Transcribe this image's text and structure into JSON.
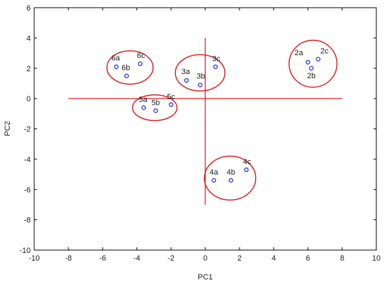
{
  "chart_data": {
    "type": "scatter",
    "xlabel": "PC1",
    "ylabel": "PC2",
    "xlim": [
      -10,
      10
    ],
    "ylim": [
      -10,
      6
    ],
    "x_ticks": [
      -10,
      -8,
      -6,
      -4,
      -2,
      0,
      2,
      4,
      6,
      8,
      10
    ],
    "y_ticks": [
      -10,
      -8,
      -6,
      -4,
      -2,
      0,
      2,
      4,
      6
    ],
    "grid": false,
    "legend": "none",
    "marker_color": "#1f2de8",
    "accent_color": "#e02020",
    "reference_lines": [
      {
        "orientation": "horizontal",
        "y": 0,
        "x_from": -8,
        "x_to": 8
      },
      {
        "orientation": "vertical",
        "x": 0,
        "y_from": -7,
        "y_to": 4
      }
    ],
    "points": [
      {
        "label": "2a",
        "x": 6.0,
        "y": 2.4
      },
      {
        "label": "2b",
        "x": 6.2,
        "y": 2.0
      },
      {
        "label": "2c",
        "x": 6.6,
        "y": 2.6
      },
      {
        "label": "3a",
        "x": -1.1,
        "y": 1.2
      },
      {
        "label": "3b",
        "x": -0.3,
        "y": 0.9
      },
      {
        "label": "3c",
        "x": 0.6,
        "y": 2.1
      },
      {
        "label": "4a",
        "x": 0.5,
        "y": -5.4
      },
      {
        "label": "4b",
        "x": 1.5,
        "y": -5.4
      },
      {
        "label": "4c",
        "x": 2.4,
        "y": -4.7
      },
      {
        "label": "5a",
        "x": -3.6,
        "y": -0.6
      },
      {
        "label": "5b",
        "x": -2.9,
        "y": -0.8
      },
      {
        "label": "5c",
        "x": -2.0,
        "y": -0.4
      },
      {
        "label": "6a",
        "x": -5.2,
        "y": 2.1
      },
      {
        "label": "6b",
        "x": -4.6,
        "y": 1.5
      },
      {
        "label": "6c",
        "x": -3.8,
        "y": 2.3
      }
    ],
    "groups": [
      {
        "members": [
          "2a",
          "2b",
          "2c"
        ],
        "cx": 6.3,
        "cy": 2.3,
        "rx": 1.4,
        "ry": 1.55
      },
      {
        "members": [
          "3a",
          "3b",
          "3c"
        ],
        "cx": -0.3,
        "cy": 1.7,
        "rx": 1.45,
        "ry": 1.2
      },
      {
        "members": [
          "4a",
          "4b",
          "4c"
        ],
        "cx": 1.45,
        "cy": -5.25,
        "rx": 1.5,
        "ry": 1.45
      },
      {
        "members": [
          "5a",
          "5b",
          "5c"
        ],
        "cx": -2.95,
        "cy": -0.6,
        "rx": 1.3,
        "ry": 0.85
      },
      {
        "members": [
          "6a",
          "6b",
          "6c"
        ],
        "cx": -4.4,
        "cy": 2.05,
        "rx": 1.35,
        "ry": 1.1
      }
    ]
  }
}
